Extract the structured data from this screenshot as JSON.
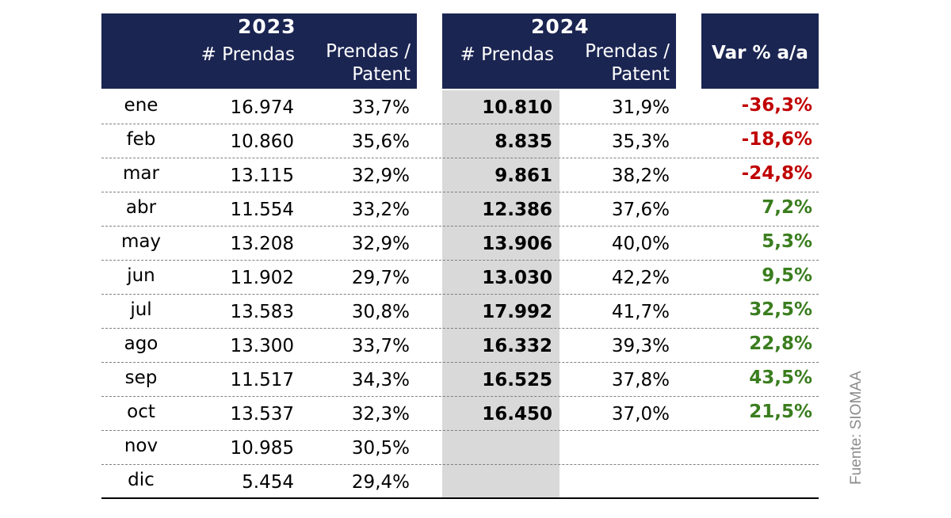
{
  "header": {
    "year_2023": "2023",
    "year_2024": "2024",
    "col_prendas": "# Prendas",
    "col_ratio_line1": "Prendas /",
    "col_ratio_line2": "Patent",
    "col_var": "Var % a/a"
  },
  "source": "Fuente: SIOMAA",
  "colors": {
    "header_bg": "#1b2552",
    "negative": "#c00000",
    "positive": "#3a7d1e",
    "highlight": "#d9d9d9"
  },
  "chart_data": {
    "type": "table",
    "columns": [
      "",
      "2023 # Prendas",
      "2023 Prendas / Patent",
      "2024 # Prendas",
      "2024 Prendas / Patent",
      "Var % a/a"
    ],
    "rows": [
      {
        "month": "ene",
        "p2023": "16.974",
        "r2023": "33,7%",
        "p2024": "10.810",
        "r2024": "31,9%",
        "var": "-36,3%",
        "sign": "neg"
      },
      {
        "month": "feb",
        "p2023": "10.860",
        "r2023": "35,6%",
        "p2024": "8.835",
        "r2024": "35,3%",
        "var": "-18,6%",
        "sign": "neg"
      },
      {
        "month": "mar",
        "p2023": "13.115",
        "r2023": "32,9%",
        "p2024": "9.861",
        "r2024": "38,2%",
        "var": "-24,8%",
        "sign": "neg"
      },
      {
        "month": "abr",
        "p2023": "11.554",
        "r2023": "33,2%",
        "p2024": "12.386",
        "r2024": "37,6%",
        "var": "7,2%",
        "sign": "pos"
      },
      {
        "month": "may",
        "p2023": "13.208",
        "r2023": "32,9%",
        "p2024": "13.906",
        "r2024": "40,0%",
        "var": "5,3%",
        "sign": "pos"
      },
      {
        "month": "jun",
        "p2023": "11.902",
        "r2023": "29,7%",
        "p2024": "13.030",
        "r2024": "42,2%",
        "var": "9,5%",
        "sign": "pos"
      },
      {
        "month": "jul",
        "p2023": "13.583",
        "r2023": "30,8%",
        "p2024": "17.992",
        "r2024": "41,7%",
        "var": "32,5%",
        "sign": "pos"
      },
      {
        "month": "ago",
        "p2023": "13.300",
        "r2023": "33,7%",
        "p2024": "16.332",
        "r2024": "39,3%",
        "var": "22,8%",
        "sign": "pos"
      },
      {
        "month": "sep",
        "p2023": "11.517",
        "r2023": "34,3%",
        "p2024": "16.525",
        "r2024": "37,8%",
        "var": "43,5%",
        "sign": "pos"
      },
      {
        "month": "oct",
        "p2023": "13.537",
        "r2023": "32,3%",
        "p2024": "16.450",
        "r2024": "37,0%",
        "var": "21,5%",
        "sign": "pos"
      },
      {
        "month": "nov",
        "p2023": "10.985",
        "r2023": "30,5%",
        "p2024": "",
        "r2024": "",
        "var": "",
        "sign": ""
      },
      {
        "month": "dic",
        "p2023": "5.454",
        "r2023": "29,4%",
        "p2024": "",
        "r2024": "",
        "var": "",
        "sign": ""
      }
    ]
  }
}
